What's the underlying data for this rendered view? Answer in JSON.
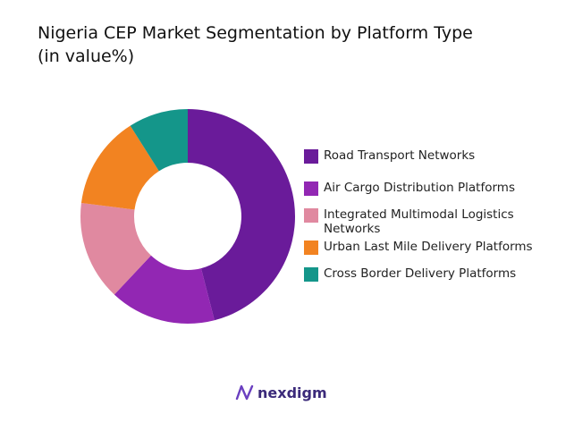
{
  "chart_data": {
    "type": "donut",
    "title": "Nigeria CEP Market Segmentation by Platform Type",
    "subtitle": "(in value%)",
    "categories": [
      "Road Transport Networks",
      "Air Cargo Distribution Platforms",
      "Integrated Multimodal Logistics Networks",
      "Urban Last Mile Delivery Platforms",
      "Cross Border Delivery Platforms"
    ],
    "values": [
      46,
      16,
      15,
      14,
      9
    ],
    "colors": [
      "#6a1b9a",
      "#9227b3",
      "#e089a0",
      "#f28321",
      "#14968a"
    ],
    "legend": "right"
  },
  "logo": "nexdigm"
}
